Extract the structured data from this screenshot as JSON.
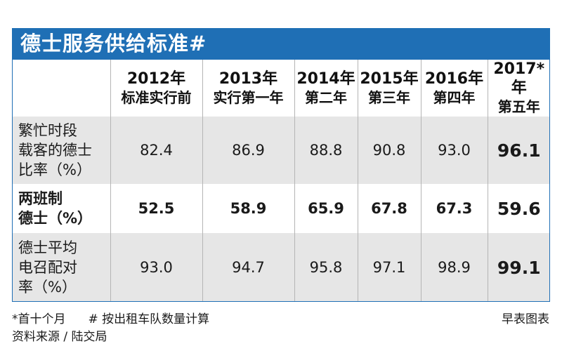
{
  "title": "德士服务供给标准#",
  "headers": [
    {
      "year": "2012年",
      "sub": "标准实行前"
    },
    {
      "year": "2013年",
      "sub": "实行第一年"
    },
    {
      "year": "2014年",
      "sub": "第二年"
    },
    {
      "year": "2015年",
      "sub": "第三年"
    },
    {
      "year": "2016年",
      "sub": "第四年"
    },
    {
      "year": "2017*年",
      "sub": "第五年"
    }
  ],
  "rows": [
    {
      "label": [
        "繁忙时段",
        "载客的德士",
        "比率（%）"
      ],
      "values": [
        "82.4",
        "86.9",
        "88.8",
        "90.8",
        "93.0",
        "96.1"
      ]
    },
    {
      "label": [
        "两班制",
        "德士（%）"
      ],
      "values": [
        "52.5",
        "58.9",
        "65.9",
        "67.8",
        "67.3",
        "59.6"
      ]
    },
    {
      "label": [
        "德士平均",
        "电召配对",
        "率（%）"
      ],
      "values": [
        "93.0",
        "94.7",
        "95.8",
        "97.1",
        "98.9",
        "99.1"
      ]
    }
  ],
  "footer": {
    "note_star": "*首十个月",
    "note_hash": "# 按出租车队数量计算",
    "credit": "早表图表",
    "source": "资料来源 / 陆交局"
  },
  "colors": {
    "accent": "#1f6fb5",
    "row_shade": "#e6e6e6"
  }
}
